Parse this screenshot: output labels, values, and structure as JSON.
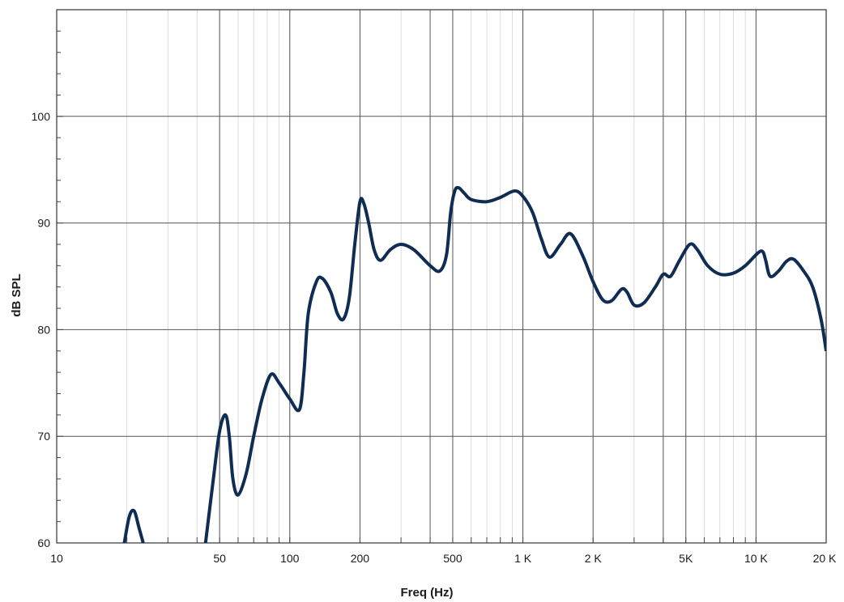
{
  "chart_data": {
    "type": "line",
    "title": "",
    "xlabel": "Freq (Hz)",
    "ylabel": "dB SPL",
    "xscale": "log",
    "xlim": [
      10,
      20000
    ],
    "ylim": [
      60,
      110
    ],
    "grid": true,
    "legend": "none",
    "line_color": "#0f2d52",
    "y_ticks": [
      {
        "value": 60,
        "label": "60"
      },
      {
        "value": 70,
        "label": "70"
      },
      {
        "value": 80,
        "label": "80"
      },
      {
        "value": 90,
        "label": "90"
      },
      {
        "value": 100,
        "label": "100"
      }
    ],
    "x_ticks": [
      {
        "value": 10,
        "label": "10"
      },
      {
        "value": 50,
        "label": "50"
      },
      {
        "value": 100,
        "label": "100"
      },
      {
        "value": 200,
        "label": "200"
      },
      {
        "value": 500,
        "label": "500"
      },
      {
        "value": 1000,
        "label": "1 K"
      },
      {
        "value": 2000,
        "label": "2 K"
      },
      {
        "value": 5000,
        "label": "5K"
      },
      {
        "value": 10000,
        "label": "10 K"
      },
      {
        "value": 20000,
        "label": "20 K"
      }
    ],
    "x_major_grid": [
      50,
      100,
      200,
      400,
      500,
      1000,
      2000,
      4000,
      5000,
      10000
    ],
    "series": [
      {
        "segments": [
          [
            [
              19.5,
              60
            ],
            [
              20.5,
              62.5
            ],
            [
              21.5,
              63.0
            ],
            [
              22.5,
              61.5
            ],
            [
              23.5,
              60
            ]
          ],
          [
            [
              43.5,
              60
            ],
            [
              47,
              66
            ],
            [
              50,
              70.5
            ],
            [
              53,
              72.0
            ],
            [
              55,
              70
            ],
            [
              57,
              66
            ],
            [
              60,
              64.5
            ],
            [
              65,
              66.5
            ],
            [
              70,
              70
            ],
            [
              76,
              73.5
            ],
            [
              83,
              75.8
            ],
            [
              90,
              75
            ],
            [
              100,
              73.5
            ],
            [
              110,
              72.5
            ],
            [
              115,
              76
            ],
            [
              120,
              81.5
            ],
            [
              130,
              84.5
            ],
            [
              138,
              84.8
            ],
            [
              150,
              83.5
            ],
            [
              160,
              81.5
            ],
            [
              170,
              81.0
            ],
            [
              180,
              83
            ],
            [
              190,
              88
            ],
            [
              200,
              92.0
            ],
            [
              208,
              91.8
            ],
            [
              218,
              90
            ],
            [
              230,
              87.5
            ],
            [
              245,
              86.5
            ],
            [
              270,
              87.5
            ],
            [
              300,
              88.0
            ],
            [
              340,
              87.5
            ],
            [
              400,
              86
            ],
            [
              440,
              85.5
            ],
            [
              470,
              87
            ],
            [
              490,
              91
            ],
            [
              510,
              93.0
            ],
            [
              530,
              93.3
            ],
            [
              560,
              92.8
            ],
            [
              600,
              92.2
            ],
            [
              700,
              92.0
            ],
            [
              800,
              92.4
            ],
            [
              920,
              93.0
            ],
            [
              1000,
              92.5
            ],
            [
              1100,
              91
            ],
            [
              1200,
              88.5
            ],
            [
              1300,
              86.8
            ],
            [
              1450,
              88
            ],
            [
              1600,
              89.0
            ],
            [
              1800,
              87
            ],
            [
              2000,
              84.5
            ],
            [
              2200,
              82.8
            ],
            [
              2400,
              82.7
            ],
            [
              2650,
              83.8
            ],
            [
              2800,
              83.5
            ],
            [
              3000,
              82.3
            ],
            [
              3300,
              82.5
            ],
            [
              3700,
              84
            ],
            [
              4000,
              85.2
            ],
            [
              4300,
              85.0
            ],
            [
              4700,
              86.5
            ],
            [
              5200,
              88.0
            ],
            [
              5600,
              87.5
            ],
            [
              6200,
              86
            ],
            [
              7000,
              85.2
            ],
            [
              8000,
              85.3
            ],
            [
              9000,
              86
            ],
            [
              10200,
              87.2
            ],
            [
              10700,
              87.3
            ],
            [
              11000,
              86.5
            ],
            [
              11500,
              85.0
            ],
            [
              12500,
              85.5
            ],
            [
              13500,
              86.4
            ],
            [
              14500,
              86.6
            ],
            [
              16000,
              85.5
            ],
            [
              17500,
              84
            ],
            [
              19000,
              81
            ],
            [
              20000,
              78.0
            ]
          ]
        ]
      }
    ]
  }
}
